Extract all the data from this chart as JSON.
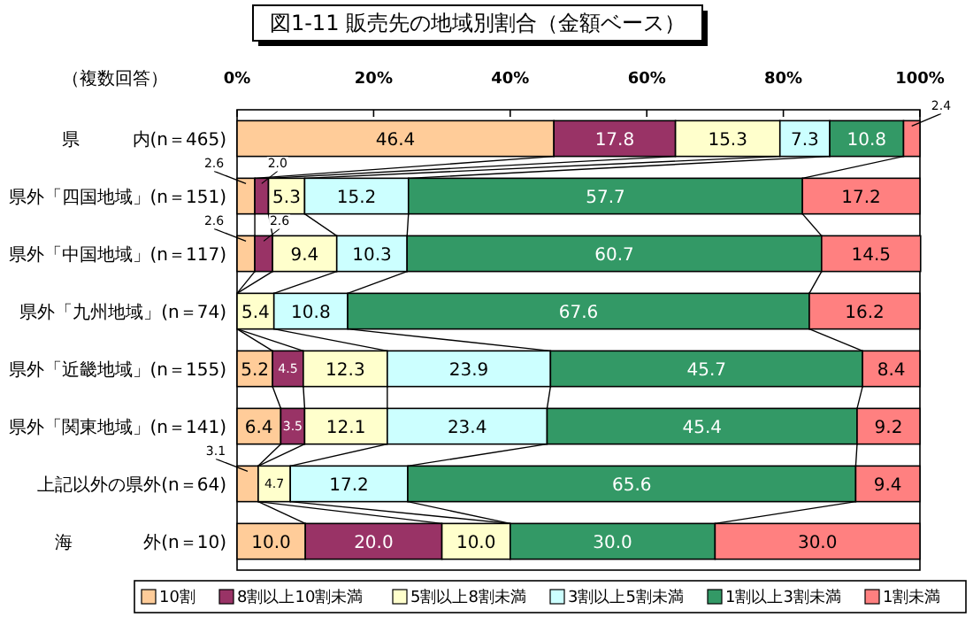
{
  "chart_data": {
    "type": "bar",
    "orientation": "horizontal",
    "stacked": true,
    "title": "図1-11  販売先の地域別割合（金額ベース）",
    "annotations": [
      "（複数回答）"
    ],
    "categories": [
      "県　　　内(n＝465)",
      "県外「四国地域」(n＝151)",
      "県外「中国地域」(n＝117)",
      "県外「九州地域」(n＝74)",
      "県外「近畿地域」(n＝155)",
      "県外「関東地域」(n＝141)",
      "上記以外の県外(n＝64)",
      "海　　　　外(n＝10)"
    ],
    "xlim": [
      0,
      100
    ],
    "xticks": [
      {
        "value": 0,
        "label": "0%"
      },
      {
        "value": 20,
        "label": "20%"
      },
      {
        "value": 40,
        "label": "40%"
      },
      {
        "value": 60,
        "label": "60%"
      },
      {
        "value": 80,
        "label": "80%"
      },
      {
        "value": 100,
        "label": "100%"
      }
    ],
    "legend": "bottom",
    "grid": false,
    "series": [
      {
        "name": "10割",
        "color": "#ffcc99",
        "values": [
          46.4,
          2.6,
          2.6,
          0,
          5.2,
          6.4,
          3.1,
          10.0
        ],
        "value_labels": [
          "46.4",
          "2.6",
          "2.6",
          null,
          "5.2",
          "6.4",
          "3.1",
          "10.0"
        ]
      },
      {
        "name": "8割以上10割未満",
        "color": "#993366",
        "values": [
          17.8,
          2.0,
          2.6,
          0,
          4.5,
          3.5,
          0,
          20.0
        ],
        "value_labels": [
          "17.8",
          "2.0",
          "2.6",
          null,
          "4.5",
          "3.5",
          null,
          "20.0"
        ]
      },
      {
        "name": "5割以上8割未満",
        "color": "#ffffcc",
        "values": [
          15.3,
          5.3,
          9.4,
          5.4,
          12.3,
          12.1,
          4.7,
          10.0
        ],
        "value_labels": [
          "15.3",
          "5.3",
          "9.4",
          "5.4",
          "12.3",
          "12.1",
          "4.7",
          "10.0"
        ]
      },
      {
        "name": "3割以上5割未満",
        "color": "#ccffff",
        "values": [
          7.3,
          15.2,
          10.3,
          10.8,
          23.9,
          23.4,
          17.2,
          0
        ],
        "value_labels": [
          "7.3",
          "15.2",
          "10.3",
          "10.8",
          "23.9",
          "23.4",
          "17.2",
          null
        ]
      },
      {
        "name": "1割以上3割未満",
        "color": "#339966",
        "values": [
          10.8,
          57.7,
          60.7,
          67.6,
          45.7,
          45.4,
          65.6,
          30.0
        ],
        "value_labels": [
          "10.8",
          "57.7",
          "60.7",
          "67.6",
          "45.7",
          "45.4",
          "65.6",
          "30.0"
        ]
      },
      {
        "name": "1割未満",
        "color": "#ff8080",
        "values": [
          2.4,
          17.2,
          14.5,
          16.2,
          8.4,
          9.2,
          9.4,
          30.0
        ],
        "value_labels": [
          "2.4",
          "17.2",
          "14.5",
          "16.2",
          "8.4",
          "9.2",
          "9.4",
          "30.0"
        ]
      }
    ]
  }
}
